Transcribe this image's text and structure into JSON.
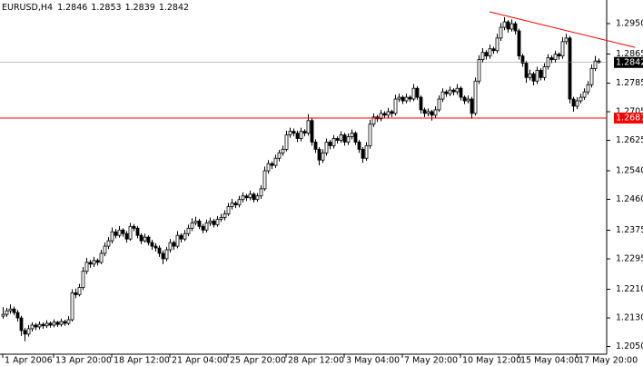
{
  "chart_data": {
    "type": "candlestick",
    "symbol": "EURUSD,H4",
    "categories": [
      "1 Apr 2006",
      null,
      null,
      null,
      null,
      null,
      null,
      null,
      null,
      null,
      null,
      null,
      null,
      null,
      "13 Apr 20:00",
      null,
      null,
      null,
      null,
      null,
      null,
      null,
      null,
      null,
      null,
      null,
      null,
      null,
      null,
      null,
      "18 Apr 12:00",
      null,
      null,
      null,
      null,
      null,
      null,
      null,
      null,
      null,
      null,
      null,
      null,
      null,
      null,
      null,
      "21 Apr 04:00",
      null,
      null,
      null,
      null,
      null,
      null,
      null,
      null,
      null,
      null,
      null,
      null,
      null,
      null,
      null,
      "25 Apr 20:00",
      null,
      null,
      null,
      null,
      null,
      null,
      null,
      null,
      null,
      null,
      null,
      null,
      null,
      null,
      null,
      "28 Apr 12:00",
      null,
      null,
      null,
      null,
      null,
      null,
      null,
      null,
      null,
      null,
      null,
      null,
      null,
      null,
      null,
      "3 May 04:00",
      null,
      null,
      null,
      null,
      null,
      null,
      null,
      null,
      null,
      null,
      null,
      null,
      null,
      null,
      null,
      "7 May 20:00",
      null,
      null,
      null,
      null,
      null,
      null,
      null,
      null,
      null,
      null,
      null,
      null,
      null,
      null,
      null,
      "10 May 12:00",
      null,
      null,
      null,
      null,
      null,
      null,
      null,
      null,
      null,
      null,
      null,
      null,
      null,
      null,
      null,
      "15 May 04:00",
      null,
      null,
      null,
      null,
      null,
      null,
      null,
      null,
      null,
      null,
      null,
      null,
      null,
      null,
      null,
      "17 May 20:00",
      null,
      null,
      null,
      null,
      null,
      null
    ],
    "ohlc": [
      [
        1.2135,
        1.216,
        1.2128,
        1.214
      ],
      [
        1.214,
        1.2158,
        1.2133,
        1.215
      ],
      [
        1.215,
        1.2168,
        1.2142,
        1.2155
      ],
      [
        1.2155,
        1.2162,
        1.2138,
        1.2145
      ],
      [
        1.2145,
        1.2152,
        1.212,
        1.213
      ],
      [
        1.213,
        1.2136,
        1.208,
        1.2095
      ],
      [
        1.2095,
        1.2102,
        1.2065,
        1.2085
      ],
      [
        1.2085,
        1.211,
        1.2078,
        1.21
      ],
      [
        1.21,
        1.2118,
        1.2092,
        1.211
      ],
      [
        1.211,
        1.2116,
        1.2096,
        1.2105
      ],
      [
        1.2105,
        1.212,
        1.2098,
        1.2112
      ],
      [
        1.2112,
        1.2118,
        1.21,
        1.2108
      ],
      [
        1.2108,
        1.2124,
        1.2102,
        1.2115
      ],
      [
        1.2115,
        1.212,
        1.2103,
        1.211
      ],
      [
        1.211,
        1.2126,
        1.2104,
        1.2118
      ],
      [
        1.2118,
        1.2122,
        1.2105,
        1.2112
      ],
      [
        1.2112,
        1.2128,
        1.2106,
        1.212
      ],
      [
        1.212,
        1.2125,
        1.2108,
        1.2115
      ],
      [
        1.2115,
        1.2135,
        1.211,
        1.2125
      ],
      [
        1.2125,
        1.221,
        1.212,
        1.22
      ],
      [
        1.22,
        1.2212,
        1.2185,
        1.2195
      ],
      [
        1.2195,
        1.2225,
        1.219,
        1.2215
      ],
      [
        1.2215,
        1.2272,
        1.2208,
        1.226
      ],
      [
        1.226,
        1.2298,
        1.2252,
        1.2285
      ],
      [
        1.2285,
        1.2292,
        1.227,
        1.228
      ],
      [
        1.228,
        1.23,
        1.2272,
        1.229
      ],
      [
        1.229,
        1.2296,
        1.2276,
        1.2285
      ],
      [
        1.2285,
        1.232,
        1.228,
        1.231
      ],
      [
        1.231,
        1.234,
        1.2302,
        1.233
      ],
      [
        1.233,
        1.2355,
        1.2322,
        1.2345
      ],
      [
        1.2345,
        1.2382,
        1.2338,
        1.237
      ],
      [
        1.237,
        1.2378,
        1.2352,
        1.236
      ],
      [
        1.236,
        1.2386,
        1.2354,
        1.2375
      ],
      [
        1.2375,
        1.238,
        1.2356,
        1.2365
      ],
      [
        1.2365,
        1.2372,
        1.234,
        1.235
      ],
      [
        1.235,
        1.2395,
        1.2345,
        1.2385
      ],
      [
        1.2385,
        1.2392,
        1.2372,
        1.238
      ],
      [
        1.238,
        1.2386,
        1.2352,
        1.236
      ],
      [
        1.236,
        1.2366,
        1.2336,
        1.2345
      ],
      [
        1.2345,
        1.2365,
        1.234,
        1.2355
      ],
      [
        1.2355,
        1.236,
        1.2332,
        1.234
      ],
      [
        1.234,
        1.2348,
        1.232,
        1.233
      ],
      [
        1.233,
        1.2338,
        1.2315,
        1.2325
      ],
      [
        1.2325,
        1.2332,
        1.23,
        1.231
      ],
      [
        1.231,
        1.2318,
        1.228,
        1.2295
      ],
      [
        1.2295,
        1.2328,
        1.2288,
        1.232
      ],
      [
        1.232,
        1.235,
        1.2312,
        1.234
      ],
      [
        1.234,
        1.2346,
        1.232,
        1.233
      ],
      [
        1.233,
        1.2372,
        1.2324,
        1.236
      ],
      [
        1.236,
        1.2366,
        1.234,
        1.235
      ],
      [
        1.235,
        1.2375,
        1.2344,
        1.2365
      ],
      [
        1.2365,
        1.239,
        1.2358,
        1.238
      ],
      [
        1.238,
        1.2408,
        1.2372,
        1.2395
      ],
      [
        1.2395,
        1.2412,
        1.2388,
        1.24
      ],
      [
        1.24,
        1.2406,
        1.2378,
        1.2385
      ],
      [
        1.2385,
        1.2392,
        1.2366,
        1.2375
      ],
      [
        1.2375,
        1.2404,
        1.2368,
        1.2395
      ],
      [
        1.2395,
        1.241,
        1.2386,
        1.24
      ],
      [
        1.24,
        1.2406,
        1.2382,
        1.239
      ],
      [
        1.239,
        1.2414,
        1.2384,
        1.2405
      ],
      [
        1.2405,
        1.242,
        1.2398,
        1.241
      ],
      [
        1.241,
        1.243,
        1.2402,
        1.242
      ],
      [
        1.242,
        1.245,
        1.2414,
        1.244
      ],
      [
        1.244,
        1.2462,
        1.2432,
        1.245
      ],
      [
        1.245,
        1.2456,
        1.2436,
        1.2445
      ],
      [
        1.2445,
        1.247,
        1.2438,
        1.246
      ],
      [
        1.246,
        1.248,
        1.2452,
        1.247
      ],
      [
        1.247,
        1.2476,
        1.2456,
        1.2465
      ],
      [
        1.2465,
        1.2485,
        1.2458,
        1.2475
      ],
      [
        1.2475,
        1.248,
        1.2452,
        1.246
      ],
      [
        1.246,
        1.2478,
        1.2454,
        1.247
      ],
      [
        1.247,
        1.25,
        1.2462,
        1.249
      ],
      [
        1.249,
        1.2552,
        1.2484,
        1.254
      ],
      [
        1.254,
        1.257,
        1.2532,
        1.256
      ],
      [
        1.256,
        1.2566,
        1.2545,
        1.2555
      ],
      [
        1.2555,
        1.2585,
        1.2548,
        1.2575
      ],
      [
        1.2575,
        1.2598,
        1.2566,
        1.259
      ],
      [
        1.259,
        1.261,
        1.2582,
        1.26
      ],
      [
        1.26,
        1.2652,
        1.2594,
        1.264
      ],
      [
        1.264,
        1.266,
        1.2632,
        1.265
      ],
      [
        1.265,
        1.2658,
        1.2636,
        1.2645
      ],
      [
        1.2645,
        1.2652,
        1.262,
        1.263
      ],
      [
        1.263,
        1.266,
        1.2622,
        1.265
      ],
      [
        1.265,
        1.2656,
        1.2636,
        1.2645
      ],
      [
        1.2645,
        1.2698,
        1.2638,
        1.268
      ],
      [
        1.268,
        1.2686,
        1.261,
        1.262
      ],
      [
        1.262,
        1.2628,
        1.259,
        1.26
      ],
      [
        1.26,
        1.2606,
        1.2555,
        1.257
      ],
      [
        1.257,
        1.26,
        1.2562,
        1.259
      ],
      [
        1.259,
        1.263,
        1.2582,
        1.262
      ],
      [
        1.262,
        1.2626,
        1.26,
        1.261
      ],
      [
        1.261,
        1.264,
        1.2602,
        1.263
      ],
      [
        1.263,
        1.2636,
        1.2616,
        1.2625
      ],
      [
        1.2625,
        1.265,
        1.2618,
        1.264
      ],
      [
        1.264,
        1.2646,
        1.261,
        1.262
      ],
      [
        1.262,
        1.2644,
        1.2612,
        1.2635
      ],
      [
        1.2635,
        1.2655,
        1.2628,
        1.2645
      ],
      [
        1.2645,
        1.265,
        1.2612,
        1.262
      ],
      [
        1.262,
        1.2626,
        1.259,
        1.26
      ],
      [
        1.26,
        1.2606,
        1.2562,
        1.2575
      ],
      [
        1.2575,
        1.262,
        1.2568,
        1.261
      ],
      [
        1.261,
        1.2682,
        1.2602,
        1.267
      ],
      [
        1.267,
        1.27,
        1.2662,
        1.269
      ],
      [
        1.269,
        1.2696,
        1.2676,
        1.2685
      ],
      [
        1.2685,
        1.271,
        1.2678,
        1.27
      ],
      [
        1.27,
        1.2706,
        1.2686,
        1.2695
      ],
      [
        1.2695,
        1.2715,
        1.2688,
        1.2705
      ],
      [
        1.2705,
        1.271,
        1.269,
        1.27
      ],
      [
        1.27,
        1.2752,
        1.2694,
        1.274
      ],
      [
        1.274,
        1.2755,
        1.2732,
        1.2745
      ],
      [
        1.2745,
        1.275,
        1.2726,
        1.2735
      ],
      [
        1.2735,
        1.2755,
        1.2728,
        1.2745
      ],
      [
        1.2745,
        1.275,
        1.2732,
        1.274
      ],
      [
        1.274,
        1.2782,
        1.2734,
        1.277
      ],
      [
        1.277,
        1.2776,
        1.2738,
        1.2745
      ],
      [
        1.2745,
        1.275,
        1.27,
        1.271
      ],
      [
        1.271,
        1.2716,
        1.269,
        1.27
      ],
      [
        1.27,
        1.2714,
        1.2692,
        1.2705
      ],
      [
        1.2705,
        1.271,
        1.268,
        1.2695
      ],
      [
        1.2695,
        1.272,
        1.2688,
        1.271
      ],
      [
        1.271,
        1.275,
        1.2704,
        1.274
      ],
      [
        1.274,
        1.277,
        1.2732,
        1.276
      ],
      [
        1.276,
        1.2766,
        1.2746,
        1.2755
      ],
      [
        1.2755,
        1.2775,
        1.2748,
        1.2765
      ],
      [
        1.2765,
        1.277,
        1.275,
        1.276
      ],
      [
        1.276,
        1.2782,
        1.2752,
        1.277
      ],
      [
        1.277,
        1.2776,
        1.2736,
        1.2745
      ],
      [
        1.2745,
        1.275,
        1.2726,
        1.2735
      ],
      [
        1.2735,
        1.275,
        1.2728,
        1.274
      ],
      [
        1.274,
        1.2746,
        1.2685,
        1.27
      ],
      [
        1.27,
        1.28,
        1.2694,
        1.279
      ],
      [
        1.279,
        1.2862,
        1.2782,
        1.285
      ],
      [
        1.285,
        1.2882,
        1.2842,
        1.287
      ],
      [
        1.287,
        1.2876,
        1.285,
        1.286
      ],
      [
        1.286,
        1.2892,
        1.2852,
        1.288
      ],
      [
        1.288,
        1.2886,
        1.2866,
        1.2875
      ],
      [
        1.2875,
        1.2922,
        1.2868,
        1.291
      ],
      [
        1.291,
        1.2952,
        1.2902,
        1.294
      ],
      [
        1.294,
        1.2968,
        1.2932,
        1.2955
      ],
      [
        1.2955,
        1.296,
        1.2925,
        1.2935
      ],
      [
        1.2935,
        1.2962,
        1.2928,
        1.295
      ],
      [
        1.295,
        1.2956,
        1.292,
        1.293
      ],
      [
        1.293,
        1.2936,
        1.285,
        1.286
      ],
      [
        1.286,
        1.2866,
        1.283,
        1.284
      ],
      [
        1.284,
        1.2846,
        1.2785,
        1.28
      ],
      [
        1.28,
        1.2822,
        1.2792,
        1.281
      ],
      [
        1.281,
        1.2816,
        1.2778,
        1.279
      ],
      [
        1.279,
        1.283,
        1.2782,
        1.282
      ],
      [
        1.282,
        1.2826,
        1.2792,
        1.28
      ],
      [
        1.28,
        1.284,
        1.2792,
        1.283
      ],
      [
        1.283,
        1.2865,
        1.2822,
        1.2855
      ],
      [
        1.2855,
        1.2862,
        1.284,
        1.285
      ],
      [
        1.285,
        1.2875,
        1.2842,
        1.2865
      ],
      [
        1.2865,
        1.287,
        1.285,
        1.286
      ],
      [
        1.286,
        1.2912,
        1.2852,
        1.29
      ],
      [
        1.29,
        1.2922,
        1.2892,
        1.291
      ],
      [
        1.291,
        1.2916,
        1.2728,
        1.274
      ],
      [
        1.274,
        1.2746,
        1.2705,
        1.272
      ],
      [
        1.272,
        1.2745,
        1.2712,
        1.2735
      ],
      [
        1.2735,
        1.2755,
        1.2728,
        1.2745
      ],
      [
        1.2745,
        1.277,
        1.2738,
        1.276
      ],
      [
        1.276,
        1.279,
        1.2752,
        1.278
      ],
      [
        1.278,
        1.2836,
        1.2772,
        1.2825
      ],
      [
        1.2825,
        1.286,
        1.2818,
        1.2846
      ],
      [
        1.2846,
        1.2853,
        1.2839,
        1.2842
      ]
    ],
    "ylim": [
      1.2029,
      1.3016
    ],
    "yticks": [
      {
        "value": 1.295,
        "label": "1.2950"
      },
      {
        "value": 1.2865,
        "label": "1.2865"
      },
      {
        "value": 1.2785,
        "label": "1.2785"
      },
      {
        "value": 1.2705,
        "label": "1.2705"
      },
      {
        "value": 1.2625,
        "label": "1.2625"
      },
      {
        "value": 1.254,
        "label": "1.2540"
      },
      {
        "value": 1.246,
        "label": "1.2460"
      },
      {
        "value": 1.2375,
        "label": "1.2375"
      },
      {
        "value": 1.2295,
        "label": "1.2295"
      },
      {
        "value": 1.221,
        "label": "1.2210"
      },
      {
        "value": 1.213,
        "label": "1.2130"
      },
      {
        "value": 1.205,
        "label": "1.2050"
      }
    ],
    "color": "#000000",
    "up_fill": "#ffffff",
    "down_fill": "#000000",
    "hline": {
      "value": 1.2687,
      "color": "#ff0000"
    },
    "trendline": {
      "start": [
        134,
        1.2983
      ],
      "end": [
        174,
        1.2884
      ],
      "color": "#ff0000"
    }
  }
}
